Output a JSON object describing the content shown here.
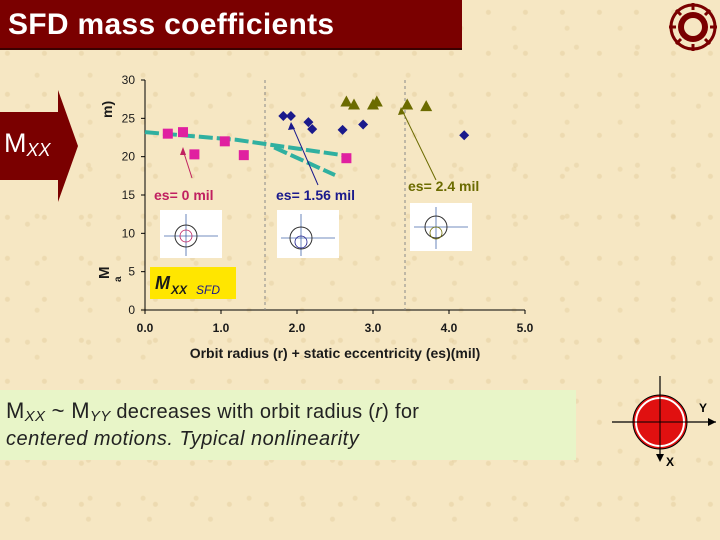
{
  "title": "SFD mass coefficients",
  "logo_icon": "university-seal-icon",
  "side_label": {
    "main": "M",
    "sub": "XX"
  },
  "chart_data": {
    "type": "scatter",
    "xlabel": "Orbit radius (r) + static eccentricity (es)(mil)",
    "ylabel": "M",
    "ylabel_unit_fragment": "m)",
    "ylabel_sub": "a",
    "xlim": [
      0,
      5
    ],
    "ylim": [
      0,
      30
    ],
    "xticks": [
      "0.0",
      "1.0",
      "2.0",
      "3.0",
      "4.0",
      "5.0"
    ],
    "yticks": [
      "0",
      "5",
      "10",
      "15",
      "20",
      "25",
      "30"
    ],
    "series": [
      {
        "marker": "square",
        "color": "#e020a0",
        "points": [
          [
            0.3,
            23.0
          ],
          [
            0.5,
            23.2
          ],
          [
            0.65,
            20.3
          ],
          [
            1.05,
            22.0
          ],
          [
            1.3,
            20.2
          ],
          [
            2.65,
            19.8
          ]
        ]
      },
      {
        "marker": "diamond",
        "color": "#1a1a8c",
        "points": [
          [
            1.82,
            25.3
          ],
          [
            1.92,
            25.3
          ],
          [
            2.15,
            24.5
          ],
          [
            2.2,
            23.6
          ],
          [
            2.6,
            23.5
          ],
          [
            2.87,
            24.2
          ],
          [
            4.2,
            22.8
          ]
        ]
      },
      {
        "marker": "triangle",
        "color": "#6b6b00",
        "points": [
          [
            2.65,
            27.2
          ],
          [
            2.75,
            26.8
          ],
          [
            3.0,
            26.8
          ],
          [
            3.05,
            27.2
          ],
          [
            3.45,
            26.8
          ],
          [
            3.7,
            26.6
          ]
        ]
      }
    ],
    "fit_lines": [
      {
        "color": "#30b0a0",
        "points": [
          [
            0.0,
            23.2
          ],
          [
            1.2,
            22.2
          ],
          [
            2.6,
            20.2
          ]
        ]
      },
      {
        "color": "#30b0a0",
        "points": [
          [
            1.7,
            21.2
          ],
          [
            2.5,
            17.6
          ]
        ]
      }
    ],
    "annotations": [
      {
        "text": "es= 0 mil",
        "color": "#c02060"
      },
      {
        "text": "es= 1.56 mil",
        "color": "#1a1a8c"
      },
      {
        "text": "es= 2.4 mil",
        "color": "#6b6b00"
      }
    ],
    "legend_box": {
      "main": "M",
      "sub": "XX",
      "tag": "SFD"
    }
  },
  "bottom": {
    "m1": "M",
    "m1_sub": "XX",
    "tilde": " ~ ",
    "m2": "M",
    "m2_sub": "YY",
    "line1_rest_a": " decreases with orbit radius (",
    "line1_r": "r",
    "line1_rest_b": ") for",
    "line2": "centered motions. Typical nonlinearity"
  },
  "axis_diagram": {
    "y_label": "Y",
    "x_label": "X"
  }
}
